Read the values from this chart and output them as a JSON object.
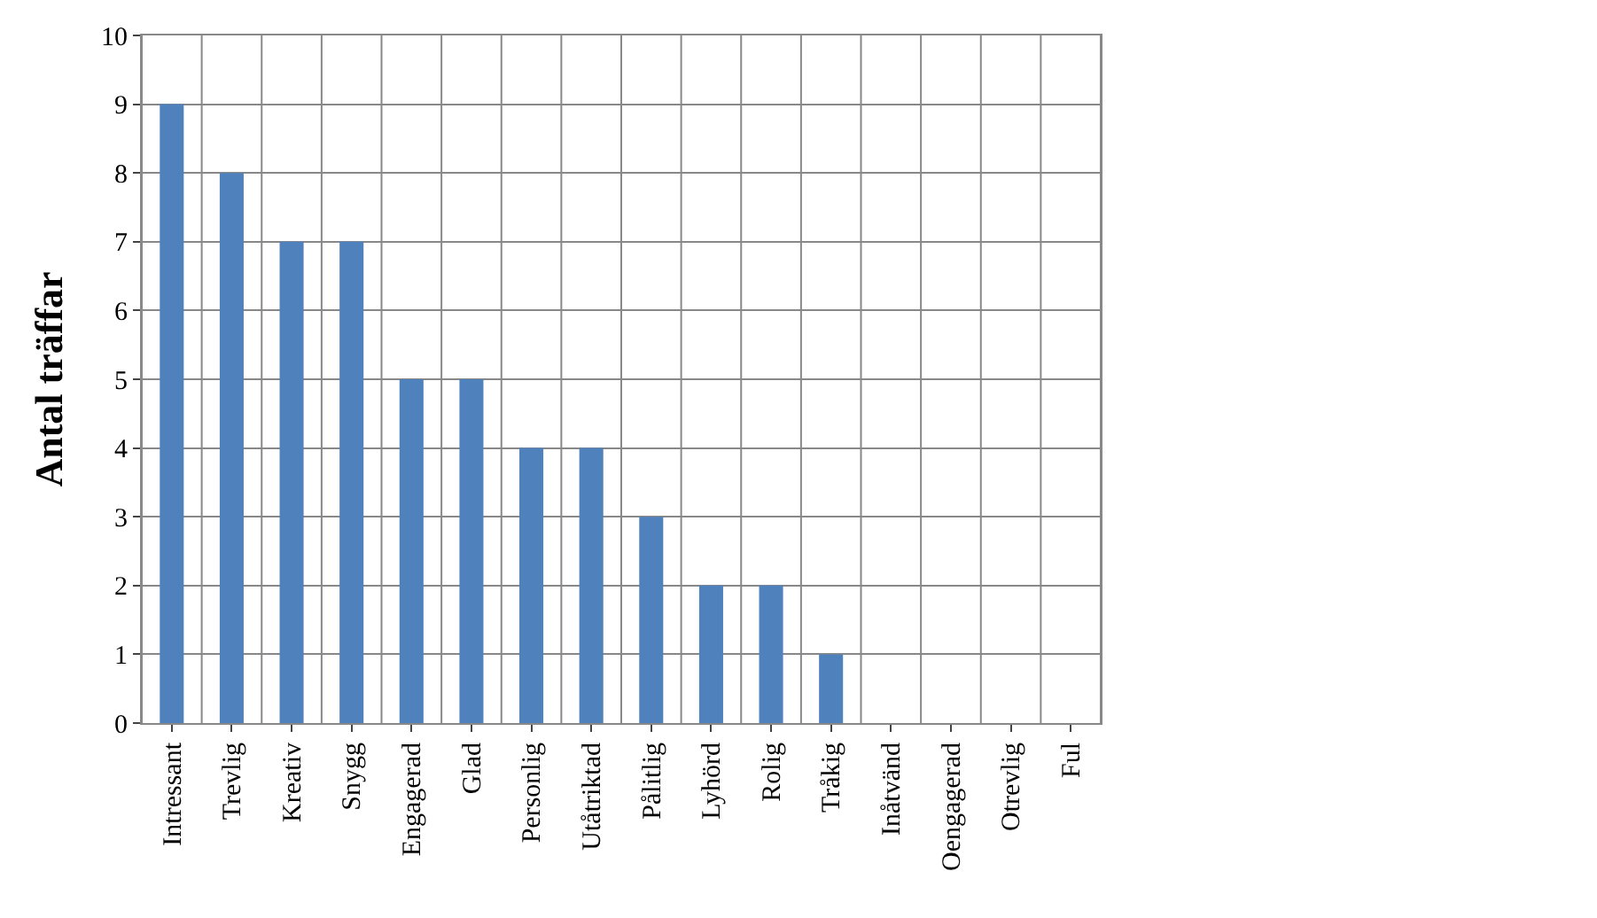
{
  "chart_data": {
    "type": "bar",
    "ylabel": "Antal träffar",
    "categories": [
      "Intressant",
      "Trevlig",
      "Kreativ",
      "Snygg",
      "Engagerad",
      "Glad",
      "Personlig",
      "Utåtriktad",
      "Pålitlig",
      "Lyhörd",
      "Rolig",
      "Tråkig",
      "Inåtvänd",
      "Oengagerad",
      "Otrevlig",
      "Ful"
    ],
    "values": [
      9,
      8,
      7,
      7,
      5,
      5,
      4,
      4,
      3,
      2,
      2,
      1,
      0,
      0,
      0,
      0
    ],
    "color": "#4f81bd",
    "ylim": [
      0,
      10
    ],
    "yticks": [
      0,
      1,
      2,
      3,
      4,
      5,
      6,
      7,
      8,
      9,
      10
    ],
    "grid": true
  }
}
